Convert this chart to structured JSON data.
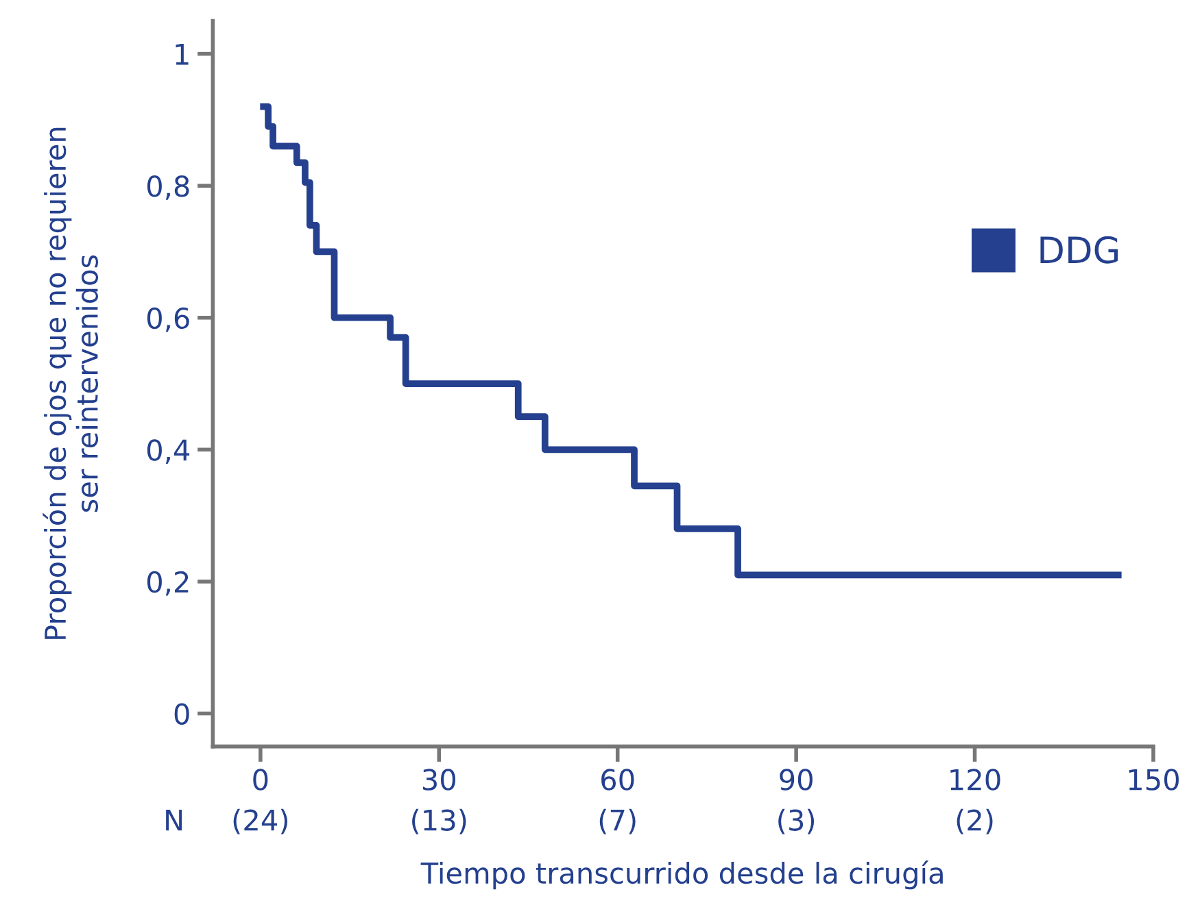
{
  "chart_data": {
    "type": "step",
    "xlabel": "Tiempo transcurrido desde la cirugía",
    "ylabel": "Proporción de ojos que no requieren\nser reintervenidos",
    "annotations": [
      "N",
      "(24)",
      "(13)",
      "(7)",
      "(3)",
      "(2)"
    ],
    "series": [
      {
        "name": "DDG",
        "color": "#24408e",
        "x": [
          0.5,
          1.3,
          2.1,
          6.1,
          7.5,
          8.3,
          9.4,
          12.4,
          21.8,
          24.4,
          43.3,
          47.8,
          62.8,
          70.0,
          80.2,
          144.1
        ],
        "values": [
          0.92,
          0.89,
          0.86,
          0.835,
          0.805,
          0.74,
          0.7,
          0.6,
          0.57,
          0.5,
          0.45,
          0.4,
          0.345,
          0.28,
          0.21,
          0.21
        ]
      }
    ],
    "xlim": [
      -8,
      150
    ],
    "xticks": [
      0,
      30,
      60,
      90,
      120,
      150
    ],
    "ylim": [
      -0.05,
      1.05
    ],
    "yticks": [
      0,
      {
        "value": 0.2,
        "label": "0,2"
      },
      {
        "value": 0.4,
        "label": "0,4"
      },
      {
        "value": 0.6,
        "label": "0,6"
      },
      {
        "value": 0.8,
        "label": "0,8"
      },
      1
    ],
    "grid": false,
    "legend": "right",
    "line_style": "solid",
    "marker": "none"
  }
}
